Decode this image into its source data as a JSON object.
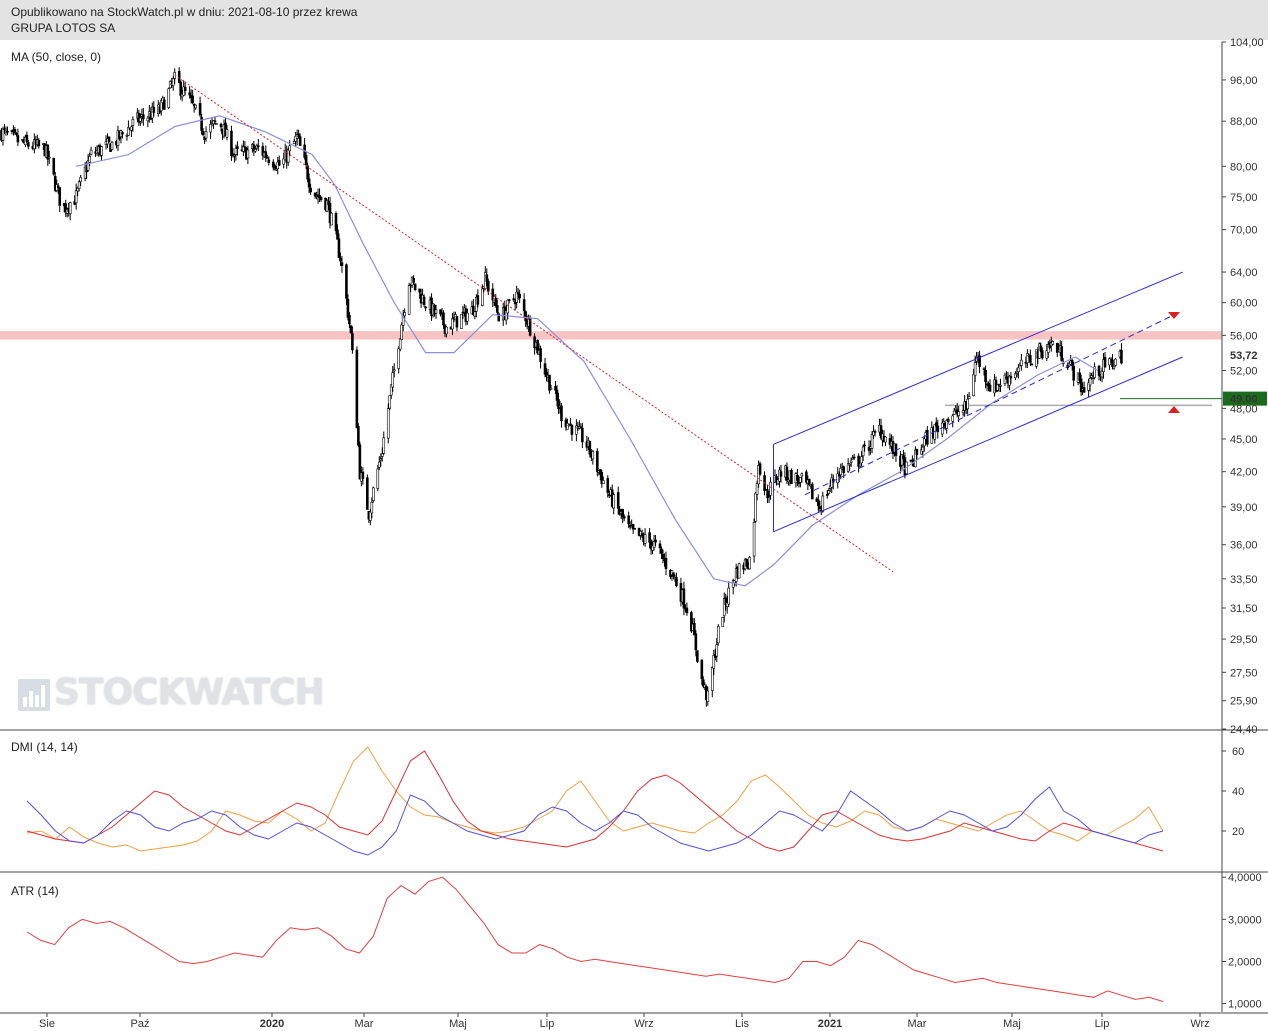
{
  "header": {
    "published": "Opublikowano na StockWatch.pl w dniu: 2021-08-10 przez krewa",
    "instrument": "GRUPA LOTOS SA"
  },
  "watermark": {
    "text": "STOCKWATCH",
    "icon": "bar-chart-icon"
  },
  "colors": {
    "candle": "#000000",
    "ma": "#8a8fe0",
    "channel": "#2a2ad6",
    "downtrend": "#e02020",
    "resistance_band": "#f6b8b8",
    "support": "#1c6b1c",
    "dmi_plus": "#f0a040",
    "dmi_minus": "#e03030",
    "adx": "#5050e0",
    "atr": "#e04040"
  },
  "chart_data": [
    {
      "type": "candlestick",
      "panel": "price",
      "indicator_label": "MA (50, close, 0)",
      "y_scale": "log",
      "ylim": [
        24.4,
        104.0
      ],
      "y_ticks": [
        "104,00",
        "96,00",
        "88,00",
        "80,00",
        "75,00",
        "70,00",
        "64,00",
        "60,00",
        "56,00",
        "52,00",
        "48,00",
        "45,00",
        "42,00",
        "39,00",
        "36,00",
        "33,50",
        "31,50",
        "29,50",
        "27,50",
        "25,90",
        "24,40"
      ],
      "last_price_label": "53,72",
      "support_label": "49,00",
      "x_labels": [
        "Sie",
        "Paź",
        "2020",
        "Mar",
        "Maj",
        "Lip",
        "Wrz",
        "Lis",
        "2021",
        "Mar",
        "Maj",
        "Lip",
        "Wrz"
      ],
      "close_path": [
        {
          "x": "2019-07-22",
          "y": 86
        },
        {
          "x": "2019-08-05",
          "y": 84
        },
        {
          "x": "2019-08-20",
          "y": 83
        },
        {
          "x": "2019-09-01",
          "y": 73
        },
        {
          "x": "2019-09-10",
          "y": 75
        },
        {
          "x": "2019-09-20",
          "y": 82
        },
        {
          "x": "2019-10-05",
          "y": 84
        },
        {
          "x": "2019-10-20",
          "y": 88
        },
        {
          "x": "2019-11-05",
          "y": 90
        },
        {
          "x": "2019-11-15",
          "y": 96
        },
        {
          "x": "2019-11-25",
          "y": 92
        },
        {
          "x": "2019-12-05",
          "y": 86
        },
        {
          "x": "2019-12-15",
          "y": 88
        },
        {
          "x": "2019-12-25",
          "y": 82
        },
        {
          "x": "2020-01-10",
          "y": 83
        },
        {
          "x": "2020-01-25",
          "y": 80
        },
        {
          "x": "2020-02-05",
          "y": 85
        },
        {
          "x": "2020-02-15",
          "y": 76
        },
        {
          "x": "2020-02-25",
          "y": 74
        },
        {
          "x": "2020-03-05",
          "y": 66
        },
        {
          "x": "2020-03-12",
          "y": 56
        },
        {
          "x": "2020-03-18",
          "y": 42
        },
        {
          "x": "2020-03-24",
          "y": 38.5
        },
        {
          "x": "2020-04-02",
          "y": 44
        },
        {
          "x": "2020-04-10",
          "y": 52
        },
        {
          "x": "2020-04-20",
          "y": 63
        },
        {
          "x": "2020-05-01",
          "y": 60
        },
        {
          "x": "2020-05-15",
          "y": 57
        },
        {
          "x": "2020-06-01",
          "y": 59
        },
        {
          "x": "2020-06-10",
          "y": 63
        },
        {
          "x": "2020-06-20",
          "y": 58
        },
        {
          "x": "2020-07-01",
          "y": 61
        },
        {
          "x": "2020-07-10",
          "y": 57
        },
        {
          "x": "2020-07-20",
          "y": 52
        },
        {
          "x": "2020-08-01",
          "y": 47
        },
        {
          "x": "2020-08-15",
          "y": 45
        },
        {
          "x": "2020-09-01",
          "y": 40
        },
        {
          "x": "2020-09-15",
          "y": 37
        },
        {
          "x": "2020-10-01",
          "y": 36
        },
        {
          "x": "2020-10-15",
          "y": 33.5
        },
        {
          "x": "2020-10-25",
          "y": 31
        },
        {
          "x": "2020-11-02",
          "y": 27
        },
        {
          "x": "2020-11-06",
          "y": 26
        },
        {
          "x": "2020-11-15",
          "y": 31
        },
        {
          "x": "2020-11-25",
          "y": 34
        },
        {
          "x": "2020-12-05",
          "y": 35
        },
        {
          "x": "2020-12-10",
          "y": 43
        },
        {
          "x": "2020-12-15",
          "y": 40
        },
        {
          "x": "2020-12-25",
          "y": 42
        },
        {
          "x": "2021-01-10",
          "y": 41
        },
        {
          "x": "2021-01-20",
          "y": 39
        },
        {
          "x": "2021-02-01",
          "y": 42
        },
        {
          "x": "2021-02-15",
          "y": 43
        },
        {
          "x": "2021-03-01",
          "y": 46
        },
        {
          "x": "2021-03-10",
          "y": 44
        },
        {
          "x": "2021-03-20",
          "y": 42
        },
        {
          "x": "2021-04-01",
          "y": 45
        },
        {
          "x": "2021-04-15",
          "y": 47
        },
        {
          "x": "2021-04-28",
          "y": 48
        },
        {
          "x": "2021-05-05",
          "y": 53.5
        },
        {
          "x": "2021-05-15",
          "y": 50
        },
        {
          "x": "2021-06-01",
          "y": 52
        },
        {
          "x": "2021-06-15",
          "y": 54
        },
        {
          "x": "2021-06-25",
          "y": 55
        },
        {
          "x": "2021-07-05",
          "y": 53
        },
        {
          "x": "2021-07-15",
          "y": 50
        },
        {
          "x": "2021-07-25",
          "y": 52
        },
        {
          "x": "2021-08-05",
          "y": 53
        },
        {
          "x": "2021-08-10",
          "y": 53.72
        }
      ],
      "ma50_path": [
        {
          "x": "2019-09-10",
          "y": 80
        },
        {
          "x": "2019-10-15",
          "y": 82
        },
        {
          "x": "2019-11-15",
          "y": 87
        },
        {
          "x": "2019-12-15",
          "y": 89
        },
        {
          "x": "2020-01-15",
          "y": 86
        },
        {
          "x": "2020-02-15",
          "y": 82
        },
        {
          "x": "2020-03-01",
          "y": 77
        },
        {
          "x": "2020-03-20",
          "y": 68
        },
        {
          "x": "2020-04-10",
          "y": 60
        },
        {
          "x": "2020-05-01",
          "y": 54
        },
        {
          "x": "2020-05-20",
          "y": 54
        },
        {
          "x": "2020-06-15",
          "y": 58.5
        },
        {
          "x": "2020-07-15",
          "y": 58
        },
        {
          "x": "2020-08-15",
          "y": 53
        },
        {
          "x": "2020-09-15",
          "y": 45
        },
        {
          "x": "2020-10-15",
          "y": 38
        },
        {
          "x": "2020-11-10",
          "y": 33.5
        },
        {
          "x": "2020-12-01",
          "y": 33
        },
        {
          "x": "2020-12-20",
          "y": 34.5
        },
        {
          "x": "2021-01-15",
          "y": 37.5
        },
        {
          "x": "2021-02-15",
          "y": 40
        },
        {
          "x": "2021-03-15",
          "y": 42
        },
        {
          "x": "2021-04-15",
          "y": 45
        },
        {
          "x": "2021-05-15",
          "y": 48.5
        },
        {
          "x": "2021-06-15",
          "y": 51.5
        },
        {
          "x": "2021-07-10",
          "y": 53.5
        },
        {
          "x": "2021-07-25",
          "y": 52
        }
      ],
      "downtrend_line": [
        {
          "x": "2019-11-15",
          "y": 97
        },
        {
          "x": "2021-03-10",
          "y": 34
        }
      ],
      "channel_upper": [
        {
          "x": "2020-12-20",
          "y": 44.5
        },
        {
          "x": "2021-09-20",
          "y": 64
        }
      ],
      "channel_mid": [
        {
          "x": "2021-01-10",
          "y": 40
        },
        {
          "x": "2021-09-20",
          "y": 59
        }
      ],
      "channel_lower": [
        {
          "x": "2020-12-20",
          "y": 37
        },
        {
          "x": "2021-09-20",
          "y": 53.5
        }
      ],
      "channel_start_vertical": [
        {
          "x": "2020-12-20",
          "y": 37
        },
        {
          "x": "2020-12-20",
          "y": 44.5
        }
      ],
      "resistance_zone": [
        55.5,
        56.5
      ],
      "support_line": 49.0,
      "grey_level": 48.3
    },
    {
      "type": "line",
      "panel": "dmi",
      "indicator_label": "DMI (14, 14)",
      "ylim": [
        0,
        70
      ],
      "y_ticks": [
        "60",
        "40",
        "20"
      ],
      "series": [
        {
          "color": "#f0a040",
          "values": [
            19,
            20,
            16,
            22,
            17,
            14,
            12,
            13,
            10,
            11,
            12,
            13,
            15,
            20,
            30,
            28,
            25,
            24,
            30,
            26,
            20,
            24,
            40,
            55,
            62,
            50,
            40,
            32,
            28,
            27,
            24,
            22,
            20,
            19,
            20,
            22,
            26,
            30,
            40,
            45,
            35,
            25,
            20,
            22,
            24,
            22,
            20,
            19,
            24,
            28,
            35,
            45,
            48,
            42,
            35,
            28,
            24,
            22,
            25,
            30,
            28,
            22,
            20,
            22,
            26,
            24,
            22,
            20,
            24,
            28,
            30,
            25,
            20,
            18,
            15,
            20,
            18,
            22,
            26,
            32,
            20
          ]
        },
        {
          "color": "#e03030",
          "values": [
            20,
            18,
            16,
            15,
            14,
            18,
            22,
            28,
            34,
            40,
            38,
            32,
            28,
            24,
            20,
            18,
            22,
            26,
            30,
            34,
            32,
            28,
            22,
            20,
            18,
            25,
            40,
            55,
            60,
            48,
            35,
            25,
            20,
            18,
            16,
            15,
            14,
            13,
            12,
            14,
            16,
            22,
            30,
            40,
            46,
            48,
            44,
            38,
            32,
            26,
            20,
            16,
            12,
            10,
            12,
            20,
            28,
            30,
            26,
            22,
            18,
            16,
            15,
            16,
            18,
            20,
            24,
            22,
            20,
            18,
            16,
            15,
            20,
            24,
            22,
            20,
            18,
            16,
            14,
            12,
            10
          ]
        },
        {
          "color": "#5050e0",
          "values": [
            35,
            28,
            20,
            15,
            14,
            18,
            25,
            30,
            28,
            22,
            20,
            24,
            26,
            30,
            28,
            22,
            18,
            16,
            20,
            24,
            22,
            18,
            14,
            10,
            8,
            12,
            20,
            38,
            35,
            28,
            24,
            20,
            18,
            16,
            18,
            20,
            28,
            32,
            30,
            24,
            20,
            24,
            30,
            28,
            22,
            18,
            14,
            12,
            10,
            12,
            14,
            18,
            24,
            30,
            28,
            24,
            20,
            28,
            40,
            35,
            30,
            24,
            20,
            22,
            26,
            30,
            28,
            24,
            20,
            22,
            28,
            36,
            42,
            30,
            26,
            20,
            18,
            16,
            14,
            18,
            20
          ]
        }
      ]
    },
    {
      "type": "line",
      "panel": "atr",
      "indicator_label": "ATR (14)",
      "ylim": [
        0.8,
        4.1
      ],
      "y_ticks": [
        "4,0000",
        "3,0000",
        "2,0000",
        "1,0000"
      ],
      "series": [
        {
          "color": "#e04040",
          "values": [
            2.7,
            2.5,
            2.4,
            2.8,
            3.0,
            2.9,
            2.95,
            2.8,
            2.6,
            2.4,
            2.2,
            2.0,
            1.95,
            2.0,
            2.1,
            2.2,
            2.15,
            2.1,
            2.5,
            2.8,
            2.75,
            2.8,
            2.6,
            2.3,
            2.2,
            2.6,
            3.5,
            3.8,
            3.6,
            3.9,
            4.0,
            3.7,
            3.3,
            2.9,
            2.4,
            2.2,
            2.2,
            2.4,
            2.3,
            2.1,
            2.0,
            2.05,
            2.0,
            1.95,
            1.9,
            1.85,
            1.8,
            1.75,
            1.7,
            1.65,
            1.7,
            1.65,
            1.6,
            1.55,
            1.5,
            1.6,
            2.0,
            2.0,
            1.9,
            2.1,
            2.5,
            2.4,
            2.2,
            2.0,
            1.8,
            1.7,
            1.6,
            1.5,
            1.55,
            1.6,
            1.5,
            1.45,
            1.4,
            1.35,
            1.3,
            1.25,
            1.2,
            1.15,
            1.3,
            1.2,
            1.1,
            1.15,
            1.05
          ]
        }
      ]
    }
  ]
}
